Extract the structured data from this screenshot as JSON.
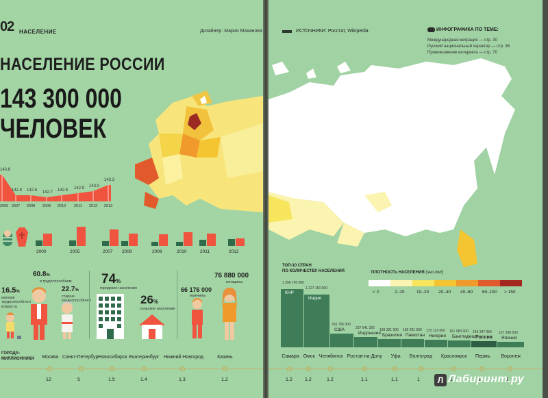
{
  "left": {
    "page_number": "02",
    "section": "НАСЕЛЕНИЕ",
    "designer": "Дизайнер: Мария Маханова",
    "title": "НАСЕЛЕНИЕ РОССИИ",
    "big_number": "143 300 000",
    "big_unit": "ЧЕЛОВЕК",
    "line_chart": {
      "years": [
        "2005",
        "2007",
        "2008",
        "2009",
        "2010",
        "2011",
        "2012",
        "2013"
      ],
      "values": [
        "143.8",
        "142.8",
        "142.8",
        "142.7",
        "142.8",
        "142.9",
        "143.0",
        "143.3"
      ]
    },
    "bar_chart": {
      "years": [
        "2000",
        "2005",
        "2007",
        "2008",
        "2009",
        "2010",
        "2011",
        "2012"
      ],
      "dark_color": "#2f6b4a",
      "red_color": "#f0533e"
    },
    "workers": {
      "young_pct": "16.5",
      "young_unit": "%",
      "young_label": "моложе трудоспособного возраста",
      "able_pct": "60.8",
      "able_unit": "%",
      "able_label": "в трудоспособном",
      "old_pct": "22.7",
      "old_unit": "%",
      "old_label": "старше трудоспособного"
    },
    "urban": {
      "city_pct": "74",
      "city_unit": "%",
      "city_label": "городское население",
      "rural_pct": "26",
      "rural_unit": "%",
      "rural_label": "сельское население"
    },
    "gender": {
      "men_count": "66 176 000",
      "men_label": "мужчины",
      "women_count": "76 880 000",
      "women_label": "женщины"
    },
    "millionaires": {
      "label_line1": "ГОРОДА-",
      "label_line2": "МИЛЛИОННИКИ",
      "cities": [
        "Москва",
        "Санкт-Петербург",
        "Новосибирск",
        "Екатеринбург",
        "Нижний Новгород",
        "Казань"
      ],
      "values": [
        "12",
        "5",
        "1.5",
        "1.4",
        "1.3",
        "1.2"
      ]
    }
  },
  "right": {
    "sources": "ИСТОЧНИКИ: Росстат, Wikipedia",
    "infographic_title": "ИНФОГРАФИКА ПО ТЕМЕ:",
    "infographic_items": [
      "Международная миграция — стр. 30",
      "Русский национальный характер — стр. 36",
      "Проникновение интернета — стр. 70"
    ],
    "top10": {
      "title_line1": "ТОП-10 СТРАН",
      "title_line2": "ПО КОЛИЧЕСТВУ НАСЕЛЕНИЯ",
      "countries": [
        {
          "value": "1 356 790 000",
          "name": "КНР"
        },
        {
          "value": "1 227 150 000",
          "name": "Индия"
        },
        {
          "value": "316 705 000",
          "name": "США"
        },
        {
          "value": "237 641 326",
          "name": "Индонезия"
        },
        {
          "value": "199 321 000",
          "name": "Бразилия"
        },
        {
          "value": "190 291 000",
          "name": "Пакистан"
        },
        {
          "value": "170 123 000",
          "name": "Нигерия"
        },
        {
          "value": "161 083 000",
          "name": "Бангладеш"
        },
        {
          "value": "143 347 059",
          "name": "Россия"
        },
        {
          "value": "127 368 000",
          "name": "Япония"
        }
      ]
    },
    "density": {
      "title": "ПЛОТНОСТЬ НАСЕЛЕНИЯ",
      "unit": "(чел./км²)",
      "bins": [
        {
          "label": "< 2",
          "color": "#ffffff"
        },
        {
          "label": "2–10",
          "color": "#fbf4b0"
        },
        {
          "label": "10–20",
          "color": "#f7e55e"
        },
        {
          "label": "20–40",
          "color": "#f4c531"
        },
        {
          "label": "40–60",
          "color": "#f19a2c"
        },
        {
          "label": "60–150",
          "color": "#e05a2b"
        },
        {
          "label": "> 150",
          "color": "#a3261f"
        }
      ]
    },
    "millionaires": {
      "cities": [
        "Самара",
        "Омск",
        "Челябинск",
        "Ростов-на-Дону",
        "Уфа",
        "Волгоград",
        "Красноярск",
        "Пермь",
        "Воронеж"
      ],
      "values": [
        "1.2",
        "1.2",
        "1.2",
        "1.1",
        "1.1",
        "1",
        "1",
        "1",
        "1"
      ]
    },
    "watermark": "Лабиринт.ру",
    "watermark_letter": "Л"
  }
}
